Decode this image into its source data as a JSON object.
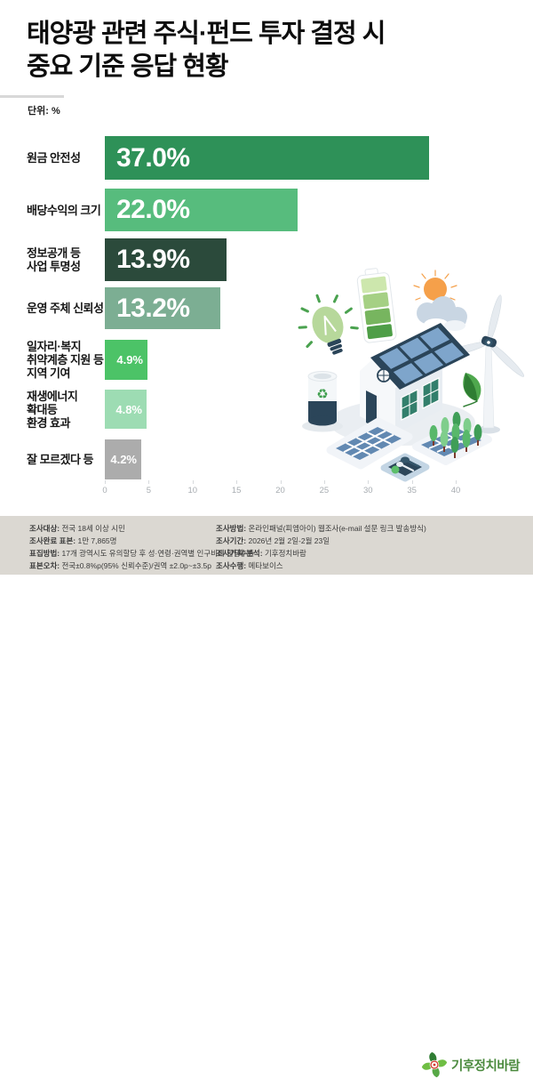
{
  "header": {
    "title_line1": "태양광 관련 주식·펀드 투자 결정 시",
    "title_line2": "중요 기준 응답 현황",
    "unit_label": "단위: %"
  },
  "chart_data": {
    "type": "bar",
    "orientation": "horizontal",
    "title": "태양광 관련 주식·펀드 투자 결정 시 중요 기준 응답 현황",
    "unit": "%",
    "xlim": [
      0,
      40
    ],
    "x_ticks": [
      0,
      5,
      10,
      15,
      20,
      25,
      30,
      35,
      40
    ],
    "grid": false,
    "categories": [
      "원금 안전성",
      "배당수익의 크기",
      "정보공개 등\n사업 투명성",
      "운영 주체 신뢰성",
      "일자리·복지\n취약계층 지원 등\n지역 기여",
      "재생에너지\n확대등\n환경 효과",
      "잘 모르겠다 등"
    ],
    "values": [
      37.0,
      22.0,
      13.9,
      13.2,
      4.9,
      4.8,
      4.2
    ],
    "value_labels": [
      "37.0%",
      "22.0%",
      "13.9%",
      "13.2%",
      "4.9%",
      "4.8%",
      "4.2%"
    ],
    "bar_colors": [
      "#2e9158",
      "#57bc7d",
      "#2b4a3b",
      "#7cae93",
      "#4cc367",
      "#9ddcb3",
      "#acacac"
    ]
  },
  "illustration": {
    "icons": [
      "light-bulb",
      "battery",
      "sun",
      "cloud",
      "wind-turbine",
      "solar-house",
      "recycle-bin",
      "solar-panel",
      "tree-farm",
      "leaf",
      "food-tray"
    ]
  },
  "footer": {
    "left": [
      {
        "label": "조사대상:",
        "text": "전국 18세 이상 시민"
      },
      {
        "label": "조사완료 표본:",
        "text": "1만 7,865명"
      },
      {
        "label": "표집방법:",
        "text": "17개 광역시도 유의할당 후 성·연령·권역별 인구비례 할당추출"
      },
      {
        "label": "표본오차:",
        "text": "전국±0.8%p(95% 신뢰수준)/권역 ±2.0p~±3.5p"
      }
    ],
    "right": [
      {
        "label": "조사방법:",
        "text": "온라인패널(피엠아이) 웹조사(e-mail 설문 링크 발송방식)"
      },
      {
        "label": "조사기간:",
        "text": "2026년 2월 2일-2월 23일"
      },
      {
        "label": "조사기획·분석:",
        "text": "기후정치바람"
      },
      {
        "label": "조사수행:",
        "text": "메타보이스"
      }
    ],
    "logo_text": "기후정치바람"
  }
}
